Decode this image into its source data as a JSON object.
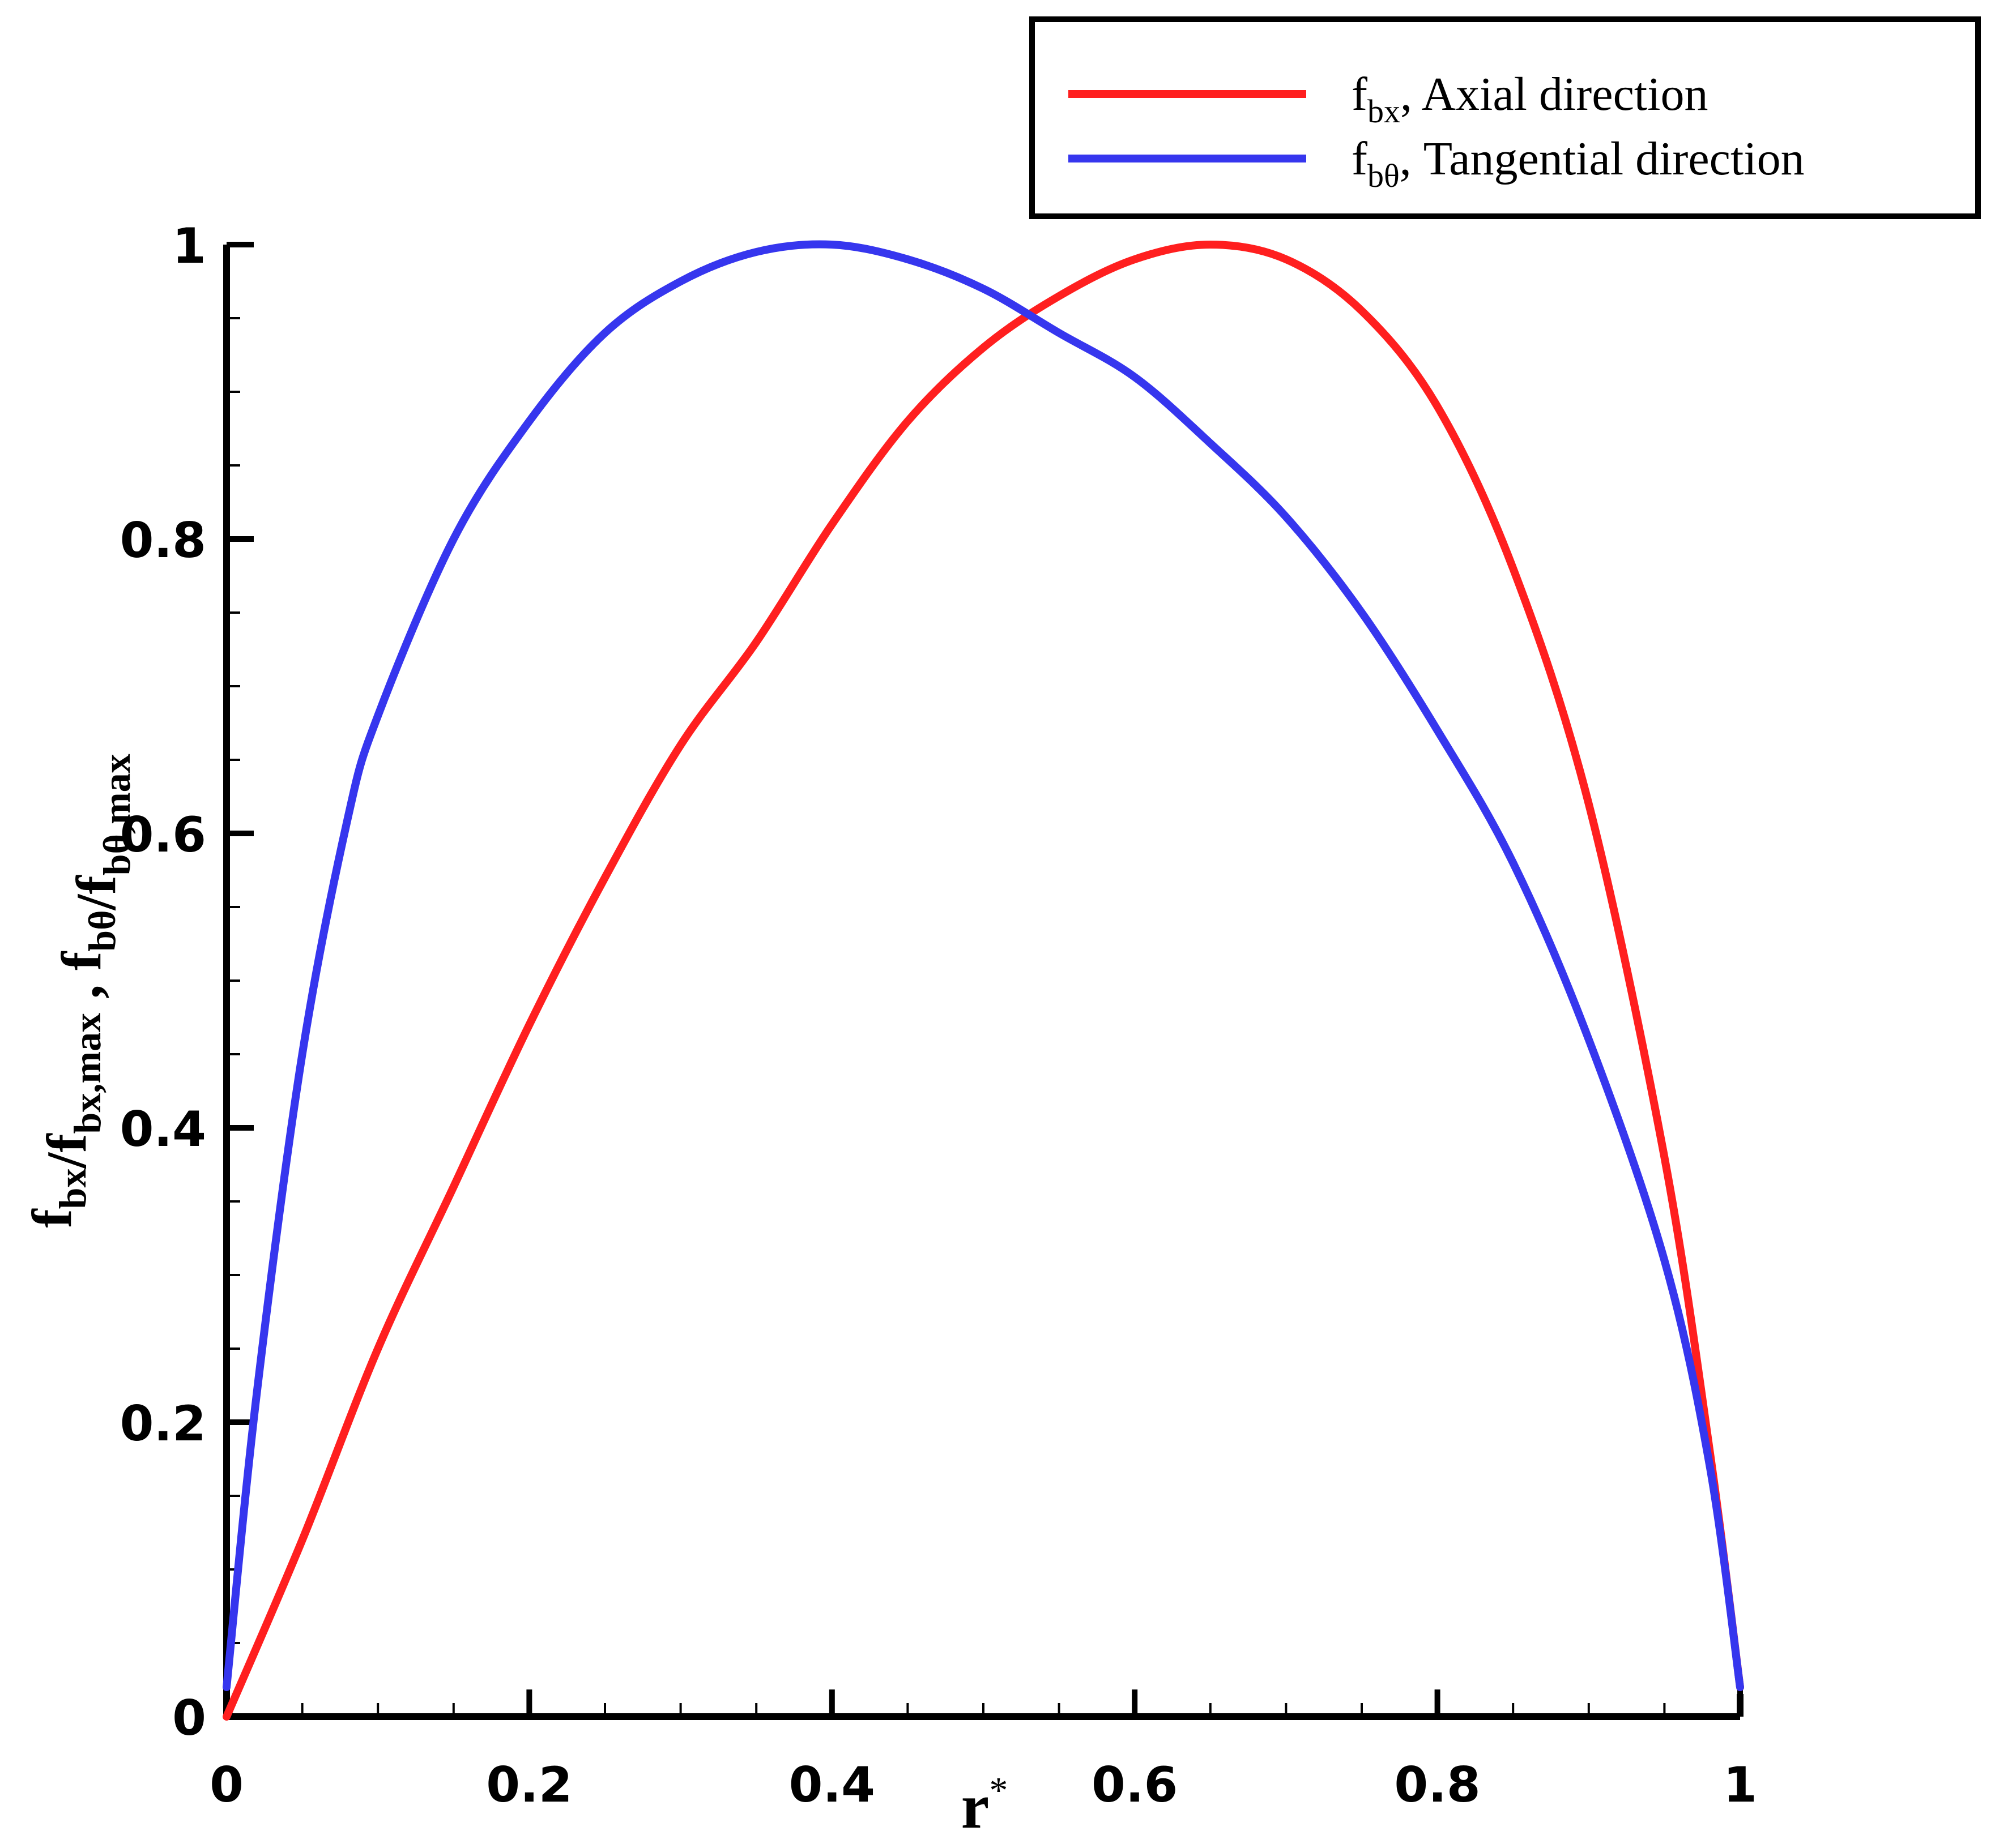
{
  "chart_data": {
    "type": "line",
    "xlabel": {
      "main": "r",
      "sup": "*"
    },
    "ylabel": {
      "parts": [
        {
          "t": "f",
          "s": "bx"
        },
        {
          "t": "/f",
          "s": "bx,max"
        },
        {
          "t": " , f",
          "s": "bθ"
        },
        {
          "t": "/f",
          "s": "bθ,max"
        }
      ]
    },
    "xlim": [
      0,
      1
    ],
    "ylim": [
      0,
      1
    ],
    "x_ticks": [
      "0",
      "0.2",
      "0.4",
      "0.6",
      "0.8",
      "1"
    ],
    "y_ticks": [
      "0",
      "0.2",
      "0.4",
      "0.6",
      "0.8",
      "1"
    ],
    "grid": false,
    "legend_position": "top-right",
    "series": [
      {
        "name": {
          "main": "f",
          "sub": "bx",
          "rest": ", Axial direction"
        },
        "color": "#ff1f1f",
        "x": [
          0,
          0.05,
          0.1,
          0.15,
          0.2,
          0.25,
          0.3,
          0.35,
          0.4,
          0.45,
          0.5,
          0.55,
          0.6,
          0.65,
          0.7,
          0.75,
          0.8,
          0.85,
          0.9,
          0.95,
          0.98,
          1.0
        ],
        "y": [
          0,
          0.12,
          0.25,
          0.36,
          0.47,
          0.57,
          0.66,
          0.73,
          0.81,
          0.88,
          0.93,
          0.965,
          0.99,
          1.0,
          0.99,
          0.955,
          0.89,
          0.78,
          0.62,
          0.38,
          0.18,
          0.02
        ]
      },
      {
        "name": {
          "main": "f",
          "sub": "bθ",
          "rest": ", Tangential direction"
        },
        "color": "#3636ee",
        "x": [
          0,
          0.02,
          0.05,
          0.08,
          0.1,
          0.15,
          0.2,
          0.25,
          0.3,
          0.35,
          0.4,
          0.45,
          0.5,
          0.55,
          0.6,
          0.65,
          0.7,
          0.75,
          0.8,
          0.85,
          0.9,
          0.95,
          0.98,
          1.0
        ],
        "y": [
          0.02,
          0.22,
          0.45,
          0.61,
          0.68,
          0.8,
          0.88,
          0.94,
          0.975,
          0.995,
          1.0,
          0.99,
          0.97,
          0.94,
          0.91,
          0.865,
          0.815,
          0.75,
          0.67,
          0.58,
          0.46,
          0.31,
          0.17,
          0.02
        ]
      }
    ]
  }
}
